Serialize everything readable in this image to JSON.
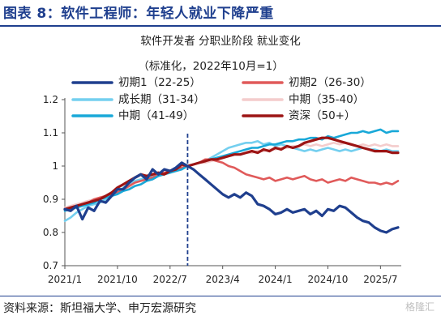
{
  "page_title": "图表 8：软件工程师：年轻人就业下降严重",
  "source_note": "资料来源：斯坦福大学、申万宏源研究",
  "watermark": "格隆汇",
  "chart_data": {
    "type": "line",
    "title": "软件开发者 分职业阶段 就业变化",
    "subtitle": "（标准化，2022年10月=1）",
    "xlabel": "",
    "ylabel": "",
    "ylim": [
      0.7,
      1.2
    ],
    "yticks": [
      0.7,
      0.8,
      0.9,
      1.0,
      1.1,
      1.2
    ],
    "ytick_labels": [
      "0.7",
      "0.8",
      "0.9",
      "1",
      "1.1",
      "1.2"
    ],
    "x_tick_labels": [
      "2021/1",
      "2021/10",
      "2022/7",
      "2023/4",
      "2024/1",
      "2024/10",
      "2025/7"
    ],
    "x_tick_index": [
      0,
      9,
      18,
      27,
      36,
      45,
      54
    ],
    "reference_line_index": 21,
    "grid": false,
    "legend": "top",
    "series": [
      {
        "name": "初期1（22-25）",
        "color": "#1f3f8e",
        "width": 3.2,
        "values": [
          0.87,
          0.865,
          0.88,
          0.84,
          0.875,
          0.865,
          0.895,
          0.89,
          0.91,
          0.93,
          0.93,
          0.95,
          0.965,
          0.975,
          0.96,
          0.99,
          0.975,
          0.99,
          0.985,
          0.995,
          1.01,
          1.0,
          0.99,
          0.975,
          0.96,
          0.945,
          0.93,
          0.915,
          0.905,
          0.915,
          0.905,
          0.92,
          0.91,
          0.885,
          0.88,
          0.87,
          0.855,
          0.86,
          0.87,
          0.86,
          0.865,
          0.87,
          0.855,
          0.865,
          0.85,
          0.87,
          0.865,
          0.88,
          0.875,
          0.86,
          0.845,
          0.835,
          0.83,
          0.815,
          0.805,
          0.8,
          0.81,
          0.815
        ]
      },
      {
        "name": "初期2（26-30）",
        "color": "#e05a5a",
        "width": 2.6,
        "values": [
          0.87,
          0.875,
          0.88,
          0.885,
          0.89,
          0.9,
          0.905,
          0.91,
          0.915,
          0.92,
          0.93,
          0.94,
          0.95,
          0.955,
          0.96,
          0.965,
          0.975,
          0.98,
          0.985,
          0.99,
          0.995,
          1.0,
          1.005,
          1.01,
          1.02,
          1.02,
          1.015,
          1.01,
          1.0,
          0.995,
          0.985,
          0.975,
          0.97,
          0.965,
          0.96,
          0.965,
          0.955,
          0.96,
          0.965,
          0.96,
          0.965,
          0.97,
          0.96,
          0.955,
          0.96,
          0.95,
          0.955,
          0.96,
          0.955,
          0.965,
          0.96,
          0.955,
          0.95,
          0.95,
          0.945,
          0.95,
          0.945,
          0.955
        ]
      },
      {
        "name": "成长期（31-34）",
        "color": "#74cfef",
        "width": 2.6,
        "values": [
          0.835,
          0.845,
          0.86,
          0.87,
          0.88,
          0.885,
          0.89,
          0.9,
          0.91,
          0.92,
          0.935,
          0.945,
          0.955,
          0.96,
          0.965,
          0.97,
          0.975,
          0.98,
          0.985,
          0.99,
          0.995,
          1.0,
          1.005,
          1.01,
          1.015,
          1.025,
          1.035,
          1.045,
          1.055,
          1.06,
          1.065,
          1.07,
          1.07,
          1.075,
          1.065,
          1.07,
          1.06,
          1.065,
          1.06,
          1.055,
          1.05,
          1.045,
          1.05,
          1.045,
          1.05,
          1.055,
          1.05,
          1.045,
          1.05,
          1.045,
          1.05,
          1.055,
          1.05,
          1.05,
          1.045,
          1.05,
          1.045,
          1.045
        ]
      },
      {
        "name": "中期（35-40）",
        "color": "#f4cccc",
        "width": 2.6,
        "values": [
          0.875,
          0.88,
          0.885,
          0.89,
          0.895,
          0.9,
          0.905,
          0.91,
          0.915,
          0.92,
          0.93,
          0.935,
          0.94,
          0.945,
          0.955,
          0.96,
          0.97,
          0.975,
          0.98,
          0.985,
          0.99,
          1.0,
          1.005,
          1.01,
          1.01,
          1.015,
          1.02,
          1.025,
          1.03,
          1.035,
          1.035,
          1.04,
          1.04,
          1.045,
          1.045,
          1.05,
          1.05,
          1.055,
          1.055,
          1.06,
          1.06,
          1.065,
          1.06,
          1.065,
          1.06,
          1.065,
          1.07,
          1.065,
          1.07,
          1.065,
          1.06,
          1.065,
          1.06,
          1.065,
          1.06,
          1.065,
          1.06,
          1.06
        ]
      },
      {
        "name": "中期（41-49）",
        "color": "#18a8d8",
        "width": 2.6,
        "values": [
          0.865,
          0.87,
          0.875,
          0.88,
          0.885,
          0.89,
          0.9,
          0.905,
          0.91,
          0.915,
          0.925,
          0.93,
          0.94,
          0.945,
          0.955,
          0.96,
          0.97,
          0.975,
          0.98,
          0.985,
          0.99,
          1.0,
          1.005,
          1.01,
          1.015,
          1.02,
          1.025,
          1.03,
          1.035,
          1.04,
          1.045,
          1.05,
          1.055,
          1.055,
          1.06,
          1.065,
          1.065,
          1.07,
          1.075,
          1.075,
          1.08,
          1.08,
          1.085,
          1.085,
          1.08,
          1.09,
          1.085,
          1.09,
          1.095,
          1.1,
          1.1,
          1.105,
          1.1,
          1.105,
          1.11,
          1.1,
          1.105,
          1.105
        ]
      },
      {
        "name": "资深（50+）",
        "color": "#9c1414",
        "width": 3.2,
        "values": [
          0.87,
          0.875,
          0.88,
          0.885,
          0.89,
          0.895,
          0.9,
          0.91,
          0.92,
          0.935,
          0.945,
          0.955,
          0.965,
          0.975,
          0.97,
          0.975,
          0.98,
          0.975,
          0.985,
          0.99,
          1.005,
          1.0,
          1.005,
          1.01,
          1.015,
          1.02,
          1.02,
          1.025,
          1.03,
          1.035,
          1.035,
          1.04,
          1.045,
          1.04,
          1.05,
          1.045,
          1.055,
          1.05,
          1.06,
          1.055,
          1.06,
          1.07,
          1.075,
          1.08,
          1.085,
          1.085,
          1.08,
          1.075,
          1.07,
          1.065,
          1.06,
          1.055,
          1.05,
          1.045,
          1.045,
          1.045,
          1.04,
          1.04
        ]
      }
    ]
  }
}
